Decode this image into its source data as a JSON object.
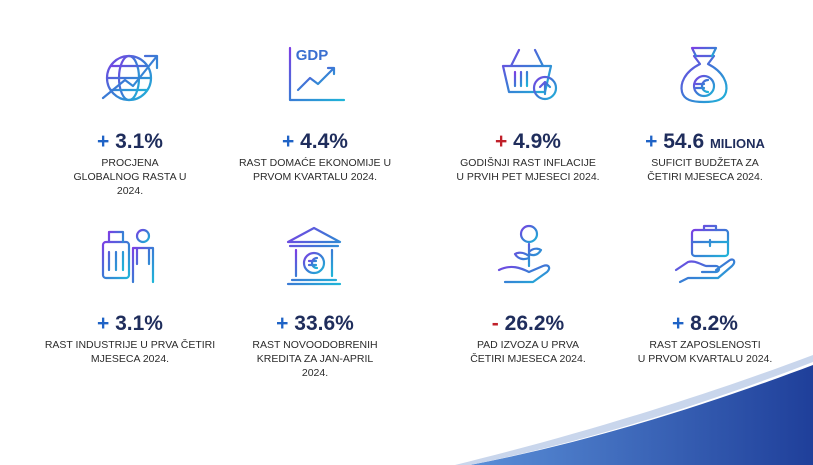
{
  "items": [
    {
      "sign": "+",
      "sign_color": "#1f63c6",
      "value": "3.1%",
      "description": [
        "PROCJENA",
        "GLOBALNOG RASTA U",
        "2024."
      ]
    },
    {
      "sign": "+",
      "sign_color": "#1f63c6",
      "value": "4.4%",
      "icon_label": "GDP",
      "description": [
        "RAST DOMAĆE EKONOMIJE U",
        "PRVOM KVARTALU 2024."
      ]
    },
    {
      "sign": "+",
      "sign_color": "#c0202a",
      "value": "4.9%",
      "description": [
        "GODIŠNJI RAST INFLACIJE",
        "U PRVIH PET MJESECI 2024."
      ]
    },
    {
      "sign": "+",
      "sign_color": "#1f63c6",
      "value": "54.6",
      "unit": "MILIONA",
      "description": [
        "SUFICIT BUDŽETA ZA",
        "ČETIRI MJESECA 2024."
      ]
    },
    {
      "sign": "+",
      "sign_color": "#1f63c6",
      "value": "3.1%",
      "description": [
        "RAST INDUSTRIJE U PRVA ČETIRI",
        "MJESECA 2024."
      ]
    },
    {
      "sign": "+",
      "sign_color": "#1f63c6",
      "value": "33.6%",
      "description": [
        "RAST NOVOODOBRENIH",
        "KREDITA ZA JAN-APRIL",
        "2024."
      ]
    },
    {
      "sign": "-",
      "sign_color": "#c0202a",
      "value": "26.2%",
      "description": [
        "PAD IZVOZA U PRVA",
        "ČETIRI MJESECA 2024."
      ]
    },
    {
      "sign": "+",
      "sign_color": "#1f63c6",
      "value": "8.2%",
      "description": [
        "RAST ZAPOSLENOSTI",
        "U PRVOM KVARTALU 2024."
      ]
    }
  ]
}
